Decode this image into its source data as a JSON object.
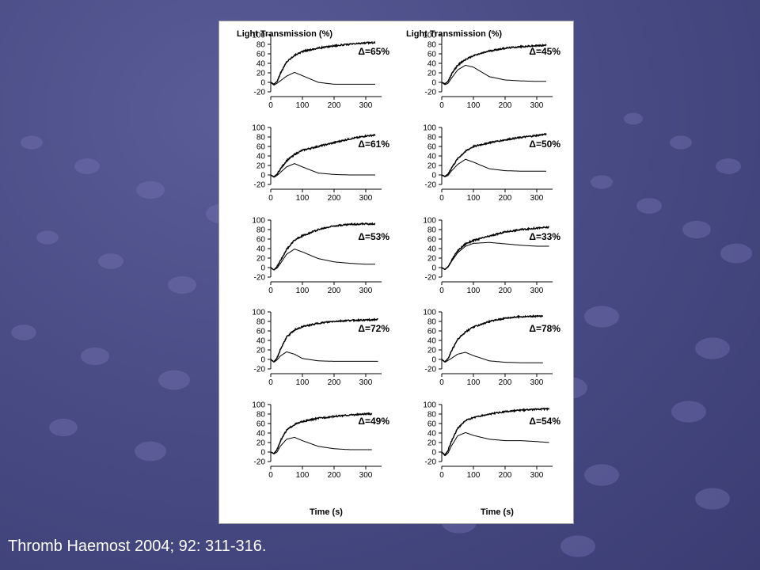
{
  "slide": {
    "citation": "Thromb Haemost 2004; 92: 311-316.",
    "colors": {
      "background": "#4a4c86",
      "panel": "#ffffff",
      "trace": "#000000",
      "text": "#ffffff"
    }
  },
  "figure": {
    "ylabel": "Light Transmission (%)",
    "xlabel": "Time (s)",
    "yticks": [
      100,
      80,
      60,
      40,
      20,
      0,
      -20
    ],
    "xticks": [
      0,
      100,
      200,
      300
    ]
  },
  "chart_data": [
    {
      "type": "line",
      "column": "left",
      "row": 1,
      "annotation": "Δ=65%",
      "xlim": [
        0,
        350
      ],
      "ylim": [
        -20,
        100
      ],
      "xticks": [
        0,
        100,
        200,
        300
      ],
      "yticks": [
        -20,
        0,
        20,
        40,
        60,
        80,
        100
      ],
      "xmax_left": 330,
      "xmax_right": 330,
      "series": [
        {
          "x": [
            0,
            10,
            20,
            30,
            50,
            75,
            100,
            150,
            200,
            250,
            300,
            330
          ],
          "y": [
            0,
            -4,
            2,
            18,
            43,
            57,
            65,
            72,
            77,
            80,
            83,
            84
          ]
        },
        {
          "x": [
            0,
            10,
            20,
            30,
            50,
            75,
            100,
            150,
            200,
            250,
            300,
            330
          ],
          "y": [
            0,
            -6,
            -2,
            3,
            13,
            21,
            14,
            0,
            -4,
            -4,
            -4,
            -4
          ]
        }
      ]
    },
    {
      "type": "line",
      "column": "right",
      "row": 1,
      "annotation": "Δ=45%",
      "xlim": [
        0,
        350
      ],
      "ylim": [
        -20,
        100
      ],
      "xticks": [
        0,
        100,
        200,
        300
      ],
      "yticks": [
        -20,
        0,
        20,
        40,
        60,
        80,
        100
      ],
      "xmax_left": 330,
      "xmax_right": 330,
      "series": [
        {
          "x": [
            0,
            10,
            20,
            30,
            50,
            75,
            100,
            150,
            200,
            250,
            300,
            330
          ],
          "y": [
            0,
            -3,
            2,
            16,
            36,
            48,
            56,
            66,
            72,
            75,
            77,
            78
          ]
        },
        {
          "x": [
            0,
            10,
            20,
            30,
            50,
            75,
            100,
            150,
            200,
            250,
            300,
            330
          ],
          "y": [
            0,
            -5,
            -2,
            8,
            26,
            36,
            32,
            12,
            5,
            3,
            2,
            2
          ]
        }
      ]
    },
    {
      "type": "line",
      "column": "left",
      "row": 2,
      "annotation": "Δ=61%",
      "xlim": [
        0,
        350
      ],
      "ylim": [
        -20,
        100
      ],
      "xticks": [
        0,
        100,
        200,
        300
      ],
      "yticks": [
        -20,
        0,
        20,
        40,
        60,
        80,
        100
      ],
      "xmax_left": 330,
      "xmax_right": 330,
      "series": [
        {
          "x": [
            0,
            10,
            20,
            30,
            50,
            75,
            100,
            150,
            200,
            250,
            300,
            330
          ],
          "y": [
            0,
            -4,
            2,
            12,
            30,
            43,
            52,
            60,
            68,
            76,
            82,
            84
          ]
        },
        {
          "x": [
            0,
            10,
            20,
            30,
            50,
            75,
            100,
            150,
            200,
            250,
            300,
            330
          ],
          "y": [
            0,
            -5,
            -1,
            5,
            17,
            24,
            17,
            4,
            1,
            0,
            0,
            0
          ]
        }
      ]
    },
    {
      "type": "line",
      "column": "right",
      "row": 2,
      "annotation": "Δ=50%",
      "xlim": [
        0,
        350
      ],
      "ylim": [
        -20,
        100
      ],
      "xticks": [
        0,
        100,
        200,
        300
      ],
      "yticks": [
        -20,
        0,
        20,
        40,
        60,
        80,
        100
      ],
      "xmax_left": 330,
      "xmax_right": 330,
      "series": [
        {
          "x": [
            0,
            10,
            20,
            30,
            50,
            75,
            100,
            150,
            200,
            250,
            300,
            330
          ],
          "y": [
            0,
            -3,
            2,
            14,
            34,
            50,
            60,
            68,
            74,
            79,
            83,
            86
          ]
        },
        {
          "x": [
            0,
            10,
            20,
            30,
            50,
            75,
            100,
            150,
            200,
            250,
            300,
            330
          ],
          "y": [
            0,
            -4,
            -1,
            8,
            22,
            33,
            27,
            13,
            9,
            8,
            8,
            8
          ]
        }
      ]
    },
    {
      "type": "line",
      "column": "left",
      "row": 3,
      "annotation": "Δ=53%",
      "xlim": [
        0,
        350
      ],
      "ylim": [
        -20,
        100
      ],
      "xticks": [
        0,
        100,
        200,
        300
      ],
      "yticks": [
        -20,
        0,
        20,
        40,
        60,
        80,
        100
      ],
      "xmax_left": 330,
      "xmax_right": 330,
      "series": [
        {
          "x": [
            0,
            10,
            20,
            30,
            50,
            75,
            100,
            150,
            200,
            250,
            300,
            330
          ],
          "y": [
            0,
            -5,
            2,
            14,
            38,
            58,
            67,
            80,
            88,
            91,
            92,
            92
          ]
        },
        {
          "x": [
            0,
            10,
            20,
            30,
            50,
            75,
            100,
            150,
            200,
            250,
            300,
            330
          ],
          "y": [
            0,
            -5,
            -1,
            8,
            28,
            39,
            33,
            19,
            12,
            9,
            7,
            7
          ]
        }
      ]
    },
    {
      "type": "line",
      "column": "right",
      "row": 3,
      "annotation": "Δ=33%",
      "xlim": [
        0,
        350
      ],
      "ylim": [
        -20,
        100
      ],
      "xticks": [
        0,
        100,
        200,
        300
      ],
      "yticks": [
        -20,
        0,
        20,
        40,
        60,
        80,
        100
      ],
      "xmax_left": 340,
      "xmax_right": 340,
      "series": [
        {
          "x": [
            0,
            10,
            20,
            30,
            50,
            75,
            100,
            150,
            200,
            250,
            300,
            340
          ],
          "y": [
            0,
            -4,
            2,
            14,
            35,
            50,
            57,
            66,
            75,
            80,
            83,
            85
          ]
        },
        {
          "x": [
            0,
            10,
            20,
            30,
            50,
            75,
            100,
            150,
            200,
            250,
            300,
            340
          ],
          "y": [
            0,
            -4,
            1,
            12,
            31,
            45,
            51,
            53,
            50,
            47,
            45,
            45
          ]
        }
      ]
    },
    {
      "type": "line",
      "column": "left",
      "row": 4,
      "annotation": "Δ=72%",
      "xlim": [
        0,
        350
      ],
      "ylim": [
        -20,
        100
      ],
      "xticks": [
        0,
        100,
        200,
        300
      ],
      "yticks": [
        -20,
        0,
        20,
        40,
        60,
        80,
        100
      ],
      "xmax_left": 340,
      "xmax_right": 340,
      "series": [
        {
          "x": [
            0,
            10,
            20,
            30,
            50,
            75,
            100,
            150,
            200,
            250,
            300,
            340
          ],
          "y": [
            0,
            -5,
            3,
            20,
            47,
            62,
            69,
            76,
            80,
            82,
            83,
            84
          ]
        },
        {
          "x": [
            0,
            10,
            20,
            30,
            50,
            75,
            100,
            150,
            200,
            250,
            300,
            340
          ],
          "y": [
            0,
            -6,
            -1,
            7,
            16,
            11,
            2,
            -3,
            -4,
            -4,
            -4,
            -4
          ]
        }
      ]
    },
    {
      "type": "line",
      "column": "right",
      "row": 4,
      "annotation": "Δ=78%",
      "xlim": [
        0,
        350
      ],
      "ylim": [
        -20,
        100
      ],
      "xticks": [
        0,
        100,
        200,
        300
      ],
      "yticks": [
        -20,
        0,
        20,
        40,
        60,
        80,
        100
      ],
      "xmax_left": 320,
      "xmax_right": 320,
      "series": [
        {
          "x": [
            0,
            10,
            20,
            30,
            50,
            75,
            100,
            150,
            200,
            250,
            300,
            320
          ],
          "y": [
            0,
            -5,
            2,
            17,
            42,
            58,
            68,
            80,
            87,
            90,
            91,
            91
          ]
        },
        {
          "x": [
            0,
            10,
            20,
            30,
            50,
            75,
            100,
            150,
            200,
            250,
            300,
            320
          ],
          "y": [
            0,
            -6,
            -2,
            2,
            11,
            15,
            8,
            -3,
            -6,
            -7,
            -7,
            -7
          ]
        }
      ]
    },
    {
      "type": "line",
      "column": "left",
      "row": 5,
      "annotation": "Δ=49%",
      "xlim": [
        0,
        350
      ],
      "ylim": [
        -20,
        100
      ],
      "xticks": [
        0,
        100,
        200,
        300
      ],
      "yticks": [
        -20,
        0,
        20,
        40,
        60,
        80,
        100
      ],
      "xmax_left": 320,
      "xmax_right": 320,
      "series": [
        {
          "x": [
            0,
            10,
            20,
            30,
            50,
            75,
            100,
            150,
            200,
            250,
            300,
            320
          ],
          "y": [
            0,
            -3,
            5,
            23,
            46,
            58,
            64,
            71,
            75,
            78,
            80,
            80
          ]
        },
        {
          "x": [
            0,
            10,
            20,
            30,
            50,
            75,
            100,
            150,
            200,
            250,
            300,
            320
          ],
          "y": [
            0,
            -4,
            0,
            12,
            27,
            31,
            24,
            12,
            7,
            5,
            5,
            5
          ]
        }
      ]
    },
    {
      "type": "line",
      "column": "right",
      "row": 5,
      "annotation": "Δ=54%",
      "xlim": [
        0,
        350
      ],
      "ylim": [
        -20,
        100
      ],
      "xticks": [
        0,
        100,
        200,
        300
      ],
      "yticks": [
        -20,
        0,
        20,
        40,
        60,
        80,
        100
      ],
      "xmax_left": 340,
      "xmax_right": 340,
      "series": [
        {
          "x": [
            0,
            10,
            20,
            30,
            50,
            75,
            100,
            150,
            200,
            250,
            300,
            340
          ],
          "y": [
            0,
            -6,
            3,
            22,
            50,
            66,
            73,
            80,
            85,
            88,
            90,
            91
          ]
        },
        {
          "x": [
            0,
            10,
            20,
            30,
            50,
            75,
            100,
            150,
            200,
            250,
            300,
            340
          ],
          "y": [
            0,
            -8,
            -2,
            12,
            34,
            41,
            35,
            27,
            24,
            24,
            22,
            20
          ]
        }
      ]
    }
  ]
}
